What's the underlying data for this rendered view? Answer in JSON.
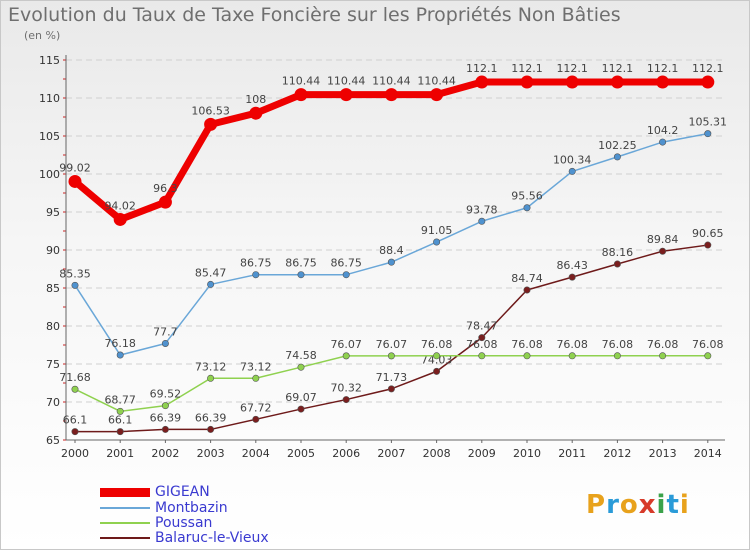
{
  "title": "Evolution du Taux de Taxe Foncière sur les Propriétés Non Bâties",
  "subtitle": "(en %)",
  "logo": {
    "letters": [
      "P",
      "r",
      "o",
      "x",
      "i",
      "t",
      "i"
    ],
    "colors": [
      "#e8a21c",
      "#2a9bd8",
      "#e8a21c",
      "#d73a2a",
      "#3aa24a",
      "#2a9bd8",
      "#e8a21c"
    ]
  },
  "chart_data": {
    "type": "line",
    "x": [
      "2000",
      "2001",
      "2002",
      "2003",
      "2004",
      "2005",
      "2006",
      "2007",
      "2008",
      "2009",
      "2010",
      "2011",
      "2012",
      "2013",
      "2014"
    ],
    "ylim": [
      65,
      115
    ],
    "yticks": [
      "65",
      "70",
      "75",
      "80",
      "85",
      "90",
      "95",
      "100",
      "105",
      "110",
      "115"
    ],
    "grid": "horizontal-dashed",
    "legend_placement": "bottom-left",
    "series": [
      {
        "name": "Balaruc-le-Vieux",
        "color": "#6e1a1a",
        "marker_color": "#7a1e1e",
        "values": [
          66.1,
          66.1,
          66.39,
          66.39,
          67.72,
          69.07,
          70.32,
          71.73,
          74.03,
          78.47,
          84.74,
          86.43,
          88.16,
          89.84,
          90.65
        ],
        "labels": [
          "66.1",
          "66.1",
          "66.39",
          "66.39",
          "67.72",
          "69.07",
          "70.32",
          "71.73",
          "74.03",
          "78.47",
          "84.74",
          "86.43",
          "88.16",
          "89.84",
          "90.65"
        ]
      },
      {
        "name": "Poussan",
        "color": "#8fd14f",
        "marker_color": "#8fd14f",
        "values": [
          71.68,
          68.77,
          69.52,
          73.12,
          73.12,
          74.58,
          76.07,
          76.07,
          76.08,
          76.08,
          76.08,
          76.08,
          76.08,
          76.08,
          76.08
        ],
        "labels": [
          "71.68",
          "68.77",
          "69.52",
          "73.12",
          "73.12",
          "74.58",
          "76.07",
          "76.07",
          "76.08",
          "76.08",
          "76.08",
          "76.08",
          "76.08",
          "76.08",
          "76.08"
        ]
      },
      {
        "name": "Montbazin",
        "color": "#6aa7d8",
        "marker_color": "#4f92cf",
        "values": [
          85.35,
          76.18,
          77.7,
          85.47,
          86.75,
          86.75,
          86.75,
          88.4,
          91.05,
          93.78,
          95.56,
          100.34,
          102.25,
          104.2,
          105.31
        ],
        "labels": [
          "85.35",
          "76.18",
          "77.7",
          "85.47",
          "86.75",
          "86.75",
          "86.75",
          "88.4",
          "91.05",
          "93.78",
          "95.56",
          "100.34",
          "102.25",
          "104.2",
          "105.31"
        ]
      },
      {
        "name": "GIGEAN",
        "color": "#ee0000",
        "marker_color": "#ee0000",
        "values": [
          99.02,
          94.02,
          96.3,
          106.53,
          108,
          110.44,
          110.44,
          110.44,
          110.44,
          112.1,
          112.1,
          112.1,
          112.1,
          112.1,
          112.1
        ],
        "labels": [
          "99.02",
          "94.02",
          "96.3",
          "106.53",
          "108",
          "110.44",
          "110.44",
          "110.44",
          "110.44",
          "112.1",
          "112.1",
          "112.1",
          "112.1",
          "112.1",
          "112.1"
        ]
      }
    ]
  },
  "legend": [
    {
      "label": "GIGEAN",
      "color": "#ee0000"
    },
    {
      "label": "Montbazin",
      "color": "#6aa7d8"
    },
    {
      "label": "Poussan",
      "color": "#8fd14f"
    },
    {
      "label": "Balaruc-le-Vieux",
      "color": "#6e1a1a"
    }
  ]
}
